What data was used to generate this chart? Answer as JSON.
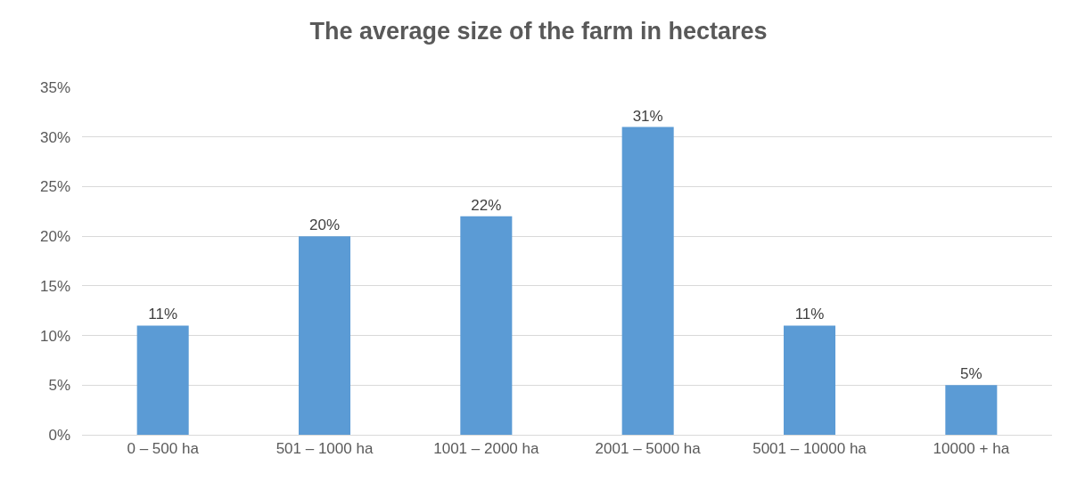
{
  "chart_data": {
    "type": "bar",
    "title": "The average size of the farm in hectares",
    "categories": [
      "0 – 500 ha",
      "501 – 1000 ha",
      "1001 – 2000 ha",
      "2001 – 5000 ha",
      "5001 – 10000 ha",
      "10000 + ha"
    ],
    "values": [
      11,
      20,
      22,
      31,
      11,
      5
    ],
    "value_labels": [
      "11%",
      "20%",
      "22%",
      "31%",
      "11%",
      "5%"
    ],
    "color": "#5b9bd5",
    "ylim": [
      0,
      35
    ],
    "yticks": [
      {
        "value": 0,
        "label": "0%"
      },
      {
        "value": 5,
        "label": "5%"
      },
      {
        "value": 10,
        "label": "10%"
      },
      {
        "value": 15,
        "label": "15%"
      },
      {
        "value": 20,
        "label": "20%"
      },
      {
        "value": 25,
        "label": "25%"
      },
      {
        "value": 30,
        "label": "30%"
      },
      {
        "value": 35,
        "label": "35%"
      }
    ],
    "grid": "y"
  }
}
